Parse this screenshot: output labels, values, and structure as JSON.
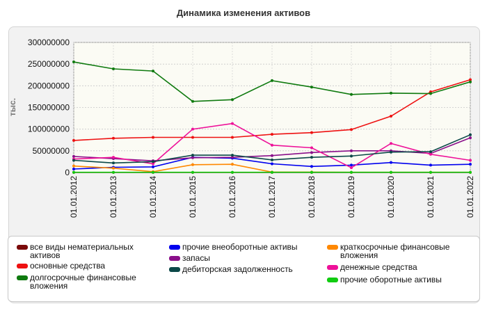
{
  "chart_data": {
    "type": "line",
    "title": "Динамика изменения активов",
    "ylabel": "тыс.",
    "xlabel": "",
    "ylim": [
      0,
      300000000
    ],
    "y_ticks": [
      0,
      50000000,
      100000000,
      150000000,
      200000000,
      250000000,
      300000000
    ],
    "grid": true,
    "legend_position": "bottom",
    "categories": [
      "01.01.2012",
      "01.01.2013",
      "01.01.2014",
      "01.01.2015",
      "01.01.2016",
      "01.01.2017",
      "01.01.2018",
      "01.01.2019",
      "01.01.2020",
      "01.01.2021",
      "01.01.2022"
    ],
    "series": [
      {
        "name": "все виды нематериальных активов",
        "color": "#7a0a0a",
        "values": [
          150000,
          150000,
          150000,
          150000,
          150000,
          150000,
          150000,
          150000,
          150000,
          150000,
          150000
        ]
      },
      {
        "name": "прочие внеоборотные активы",
        "color": "#0000ee",
        "values": [
          8000000,
          12000000,
          13000000,
          35000000,
          33000000,
          20000000,
          14000000,
          17000000,
          23000000,
          17000000,
          19000000
        ]
      },
      {
        "name": "краткосрочные финансовые вложения",
        "color": "#ff8800",
        "values": [
          15000000,
          10000000,
          2000000,
          18000000,
          19000000,
          1000000,
          1000000,
          500000,
          500000,
          500000,
          500000
        ]
      },
      {
        "name": "основные средства",
        "color": "#ee1111",
        "values": [
          74000000,
          79000000,
          81000000,
          81000000,
          81000000,
          88000000,
          92000000,
          99000000,
          130000000,
          186000000,
          214000000
        ]
      },
      {
        "name": "запасы",
        "color": "#8a0f8a",
        "values": [
          37000000,
          32000000,
          27000000,
          34000000,
          35000000,
          39000000,
          46000000,
          50000000,
          50000000,
          44000000,
          80000000
        ]
      },
      {
        "name": "денежные средства",
        "color": "#ee1199",
        "values": [
          31000000,
          35000000,
          20000000,
          100000000,
          113000000,
          63000000,
          57000000,
          11000000,
          67000000,
          42000000,
          28000000
        ]
      },
      {
        "name": "долгосрочные финансовые вложения",
        "color": "#0f7a0f",
        "values": [
          255000000,
          239000000,
          234000000,
          164000000,
          168000000,
          212000000,
          197000000,
          180000000,
          183000000,
          182000000,
          209000000
        ]
      },
      {
        "name": "дебиторская задолженность",
        "color": "#0b4848",
        "values": [
          28000000,
          22000000,
          25000000,
          40000000,
          40000000,
          29000000,
          35000000,
          38000000,
          47000000,
          48000000,
          87000000
        ]
      },
      {
        "name": "прочие оборотные активы",
        "color": "#11cc11",
        "values": [
          500000,
          500000,
          500000,
          500000,
          500000,
          500000,
          500000,
          500000,
          500000,
          500000,
          500000
        ]
      }
    ]
  }
}
